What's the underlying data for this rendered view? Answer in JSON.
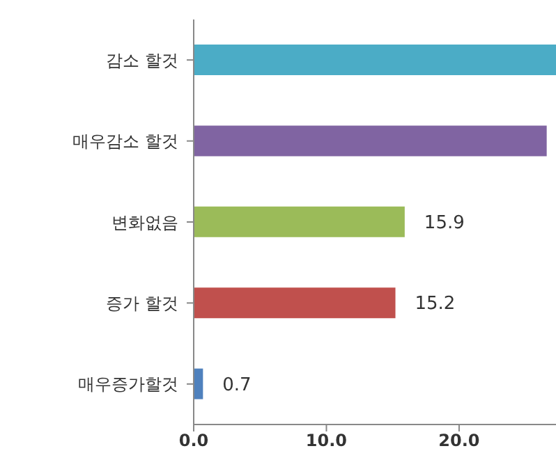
{
  "chart_data": {
    "type": "bar",
    "orientation": "horizontal",
    "categories": [
      "감소 할것",
      "매우감소 할것",
      "변화없음",
      "증가 할것",
      "매우증가할것"
    ],
    "values": [
      27.3,
      26.6,
      15.9,
      15.2,
      0.7
    ],
    "colors": [
      "#4bacc6",
      "#8064a2",
      "#9bbb59",
      "#c0504d",
      "#4f81bd"
    ],
    "value_labels": [
      null,
      null,
      "15.9",
      "15.2",
      "0.7"
    ],
    "xlim": [
      0,
      27.3
    ],
    "xticks": [
      {
        "value": 0,
        "label": "0.0"
      },
      {
        "value": 10,
        "label": "10.0"
      },
      {
        "value": 20,
        "label": "20.0"
      }
    ],
    "grid": false
  }
}
